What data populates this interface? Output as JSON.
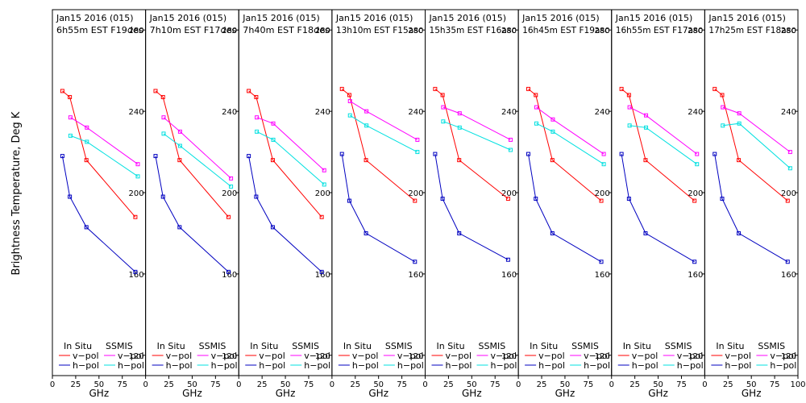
{
  "figure": {
    "ylabel": "Brightness Temperature, Deg K",
    "xlabel": "GHz",
    "legend": {
      "insitu_header": "In Situ",
      "ssmis_header": "SSMIS",
      "vpol_label": "v−pol",
      "hpol_label": "h−pol"
    }
  },
  "colors": {
    "insitu_v": "#ff0000",
    "insitu_h": "#0000c0",
    "ssmis_v": "#ff00ff",
    "ssmis_h": "#00e0e0",
    "axis": "#000000",
    "background": "#ffffff"
  },
  "chart_data": [
    {
      "type": "line",
      "title": "Jan15 2016 (015)",
      "subtitle": "6h55m EST F19des",
      "xlim": [
        0,
        100
      ],
      "ylim": [
        110,
        290
      ],
      "xticks": [
        0,
        25,
        50,
        75
      ],
      "yticks": [
        120,
        160,
        200,
        240,
        280
      ],
      "series": [
        {
          "name": "In Situ v-pol",
          "x": [
            10.7,
            18.7,
            36.5,
            89
          ],
          "y": [
            250,
            247,
            216,
            188
          ]
        },
        {
          "name": "In Situ h-pol",
          "x": [
            10.7,
            18.7,
            36.5,
            89
          ],
          "y": [
            218,
            198,
            183,
            161
          ]
        },
        {
          "name": "SSMIS v-pol",
          "x": [
            19.35,
            37,
            91.65
          ],
          "y": [
            237,
            232,
            214
          ]
        },
        {
          "name": "SSMIS h-pol",
          "x": [
            19.35,
            37,
            91.65
          ],
          "y": [
            228,
            225,
            208
          ]
        }
      ]
    },
    {
      "type": "line",
      "title": "Jan15 2016 (015)",
      "subtitle": "7h10m EST F17des",
      "xlim": [
        0,
        100
      ],
      "ylim": [
        110,
        290
      ],
      "xticks": [
        0,
        25,
        50,
        75
      ],
      "yticks": [
        120,
        160,
        200,
        240,
        280
      ],
      "series": [
        {
          "name": "In Situ v-pol",
          "x": [
            10.7,
            18.7,
            36.5,
            89
          ],
          "y": [
            250,
            247,
            216,
            188
          ]
        },
        {
          "name": "In Situ h-pol",
          "x": [
            10.7,
            18.7,
            36.5,
            89
          ],
          "y": [
            218,
            198,
            183,
            161
          ]
        },
        {
          "name": "SSMIS v-pol",
          "x": [
            19.35,
            37,
            91.65
          ],
          "y": [
            237,
            230,
            207
          ]
        },
        {
          "name": "SSMIS h-pol",
          "x": [
            19.35,
            37,
            91.65
          ],
          "y": [
            229,
            223,
            203
          ]
        }
      ]
    },
    {
      "type": "line",
      "title": "Jan15 2016 (015)",
      "subtitle": "7h40m EST F18des",
      "xlim": [
        0,
        100
      ],
      "ylim": [
        110,
        290
      ],
      "xticks": [
        0,
        25,
        50,
        75
      ],
      "yticks": [
        120,
        160,
        200,
        240,
        280
      ],
      "series": [
        {
          "name": "In Situ v-pol",
          "x": [
            10.7,
            18.7,
            36.5,
            89
          ],
          "y": [
            250,
            247,
            216,
            188
          ]
        },
        {
          "name": "In Situ h-pol",
          "x": [
            10.7,
            18.7,
            36.5,
            89
          ],
          "y": [
            218,
            198,
            183,
            161
          ]
        },
        {
          "name": "SSMIS v-pol",
          "x": [
            19.35,
            37,
            91.65
          ],
          "y": [
            237,
            234,
            211
          ]
        },
        {
          "name": "SSMIS h-pol",
          "x": [
            19.35,
            37,
            91.65
          ],
          "y": [
            230,
            226,
            204
          ]
        }
      ]
    },
    {
      "type": "line",
      "title": "Jan15 2016 (015)",
      "subtitle": "13h10m EST F15asc",
      "xlim": [
        0,
        100
      ],
      "ylim": [
        110,
        290
      ],
      "xticks": [
        0,
        25,
        50,
        75
      ],
      "yticks": [
        120,
        160,
        200,
        240,
        280
      ],
      "series": [
        {
          "name": "In Situ v-pol",
          "x": [
            10.7,
            18.7,
            36.5,
            89
          ],
          "y": [
            251,
            248,
            216,
            196
          ]
        },
        {
          "name": "In Situ h-pol",
          "x": [
            10.7,
            18.7,
            36.5,
            89
          ],
          "y": [
            219,
            196,
            180,
            166
          ]
        },
        {
          "name": "SSMIS v-pol",
          "x": [
            19.35,
            37,
            91.65
          ],
          "y": [
            245,
            240,
            226
          ]
        },
        {
          "name": "SSMIS h-pol",
          "x": [
            19.35,
            37,
            91.65
          ],
          "y": [
            238,
            233,
            220
          ]
        }
      ]
    },
    {
      "type": "line",
      "title": "Jan15 2016 (015)",
      "subtitle": "15h35m EST F16asc",
      "xlim": [
        0,
        100
      ],
      "ylim": [
        110,
        290
      ],
      "xticks": [
        0,
        25,
        50,
        75
      ],
      "yticks": [
        120,
        160,
        200,
        240,
        280
      ],
      "series": [
        {
          "name": "In Situ v-pol",
          "x": [
            10.7,
            18.7,
            36.5,
            89
          ],
          "y": [
            251,
            248,
            216,
            197
          ]
        },
        {
          "name": "In Situ h-pol",
          "x": [
            10.7,
            18.7,
            36.5,
            89
          ],
          "y": [
            219,
            197,
            180,
            167
          ]
        },
        {
          "name": "SSMIS v-pol",
          "x": [
            19.35,
            37,
            91.65
          ],
          "y": [
            242,
            239,
            226
          ]
        },
        {
          "name": "SSMIS h-pol",
          "x": [
            19.35,
            37,
            91.65
          ],
          "y": [
            235,
            232,
            221
          ]
        }
      ]
    },
    {
      "type": "line",
      "title": "Jan15 2016 (015)",
      "subtitle": "16h45m EST F19asc",
      "xlim": [
        0,
        100
      ],
      "ylim": [
        110,
        290
      ],
      "xticks": [
        0,
        25,
        50,
        75
      ],
      "yticks": [
        120,
        160,
        200,
        240,
        280
      ],
      "series": [
        {
          "name": "In Situ v-pol",
          "x": [
            10.7,
            18.7,
            36.5,
            89
          ],
          "y": [
            251,
            248,
            216,
            196
          ]
        },
        {
          "name": "In Situ h-pol",
          "x": [
            10.7,
            18.7,
            36.5,
            89
          ],
          "y": [
            219,
            197,
            180,
            166
          ]
        },
        {
          "name": "SSMIS v-pol",
          "x": [
            19.35,
            37,
            91.65
          ],
          "y": [
            242,
            236,
            219
          ]
        },
        {
          "name": "SSMIS h-pol",
          "x": [
            19.35,
            37,
            91.65
          ],
          "y": [
            234,
            230,
            214
          ]
        }
      ]
    },
    {
      "type": "line",
      "title": "Jan15 2016 (015)",
      "subtitle": "16h55m EST F17asc",
      "xlim": [
        0,
        100
      ],
      "ylim": [
        110,
        290
      ],
      "xticks": [
        0,
        25,
        50,
        75
      ],
      "yticks": [
        120,
        160,
        200,
        240,
        280
      ],
      "series": [
        {
          "name": "In Situ v-pol",
          "x": [
            10.7,
            18.7,
            36.5,
            89
          ],
          "y": [
            251,
            248,
            216,
            196
          ]
        },
        {
          "name": "In Situ h-pol",
          "x": [
            10.7,
            18.7,
            36.5,
            89
          ],
          "y": [
            219,
            197,
            180,
            166
          ]
        },
        {
          "name": "SSMIS v-pol",
          "x": [
            19.35,
            37,
            91.65
          ],
          "y": [
            242,
            238,
            219
          ]
        },
        {
          "name": "SSMIS h-pol",
          "x": [
            19.35,
            37,
            91.65
          ],
          "y": [
            233,
            232,
            214
          ]
        }
      ]
    },
    {
      "type": "line",
      "title": "Jan15 2016 (015)",
      "subtitle": "17h25m EST F18asc",
      "xlim": [
        0,
        100
      ],
      "ylim": [
        110,
        290
      ],
      "xticks": [
        0,
        25,
        50,
        75,
        100
      ],
      "yticks": [
        120,
        160,
        200,
        240,
        280
      ],
      "series": [
        {
          "name": "In Situ v-pol",
          "x": [
            10.7,
            18.7,
            36.5,
            89
          ],
          "y": [
            251,
            248,
            216,
            196
          ]
        },
        {
          "name": "In Situ h-pol",
          "x": [
            10.7,
            18.7,
            36.5,
            89
          ],
          "y": [
            219,
            197,
            180,
            166
          ]
        },
        {
          "name": "SSMIS v-pol",
          "x": [
            19.35,
            37,
            91.65
          ],
          "y": [
            242,
            239,
            220
          ]
        },
        {
          "name": "SSMIS h-pol",
          "x": [
            19.35,
            37,
            91.65
          ],
          "y": [
            233,
            234,
            212
          ]
        }
      ]
    }
  ]
}
